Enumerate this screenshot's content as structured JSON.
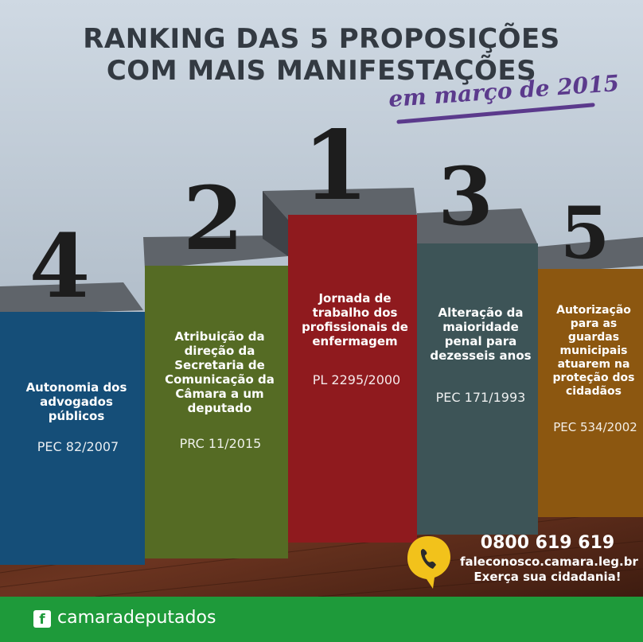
{
  "header": {
    "title_line1": "RANKING DAS 5 PROPOSIÇÕES",
    "title_line2": "COM MAIS MANIFESTAÇÕES",
    "subtitle": "em março de 2015"
  },
  "ranking": [
    {
      "rank": "4",
      "description": "Autonomia dos advogados públicos",
      "code": "PEC 82/2007",
      "color": "#154e78"
    },
    {
      "rank": "2",
      "description": "Atribuição da direção da Secretaria de Comunicação da Câmara a um deputado",
      "code": "PRC 11/2015",
      "color": "#556b24"
    },
    {
      "rank": "1",
      "description": "Jornada de trabalho dos profissionais de enfermagem",
      "code": "PL 2295/2000",
      "color": "#8f1a1e"
    },
    {
      "rank": "3",
      "description": "Alteração da maioridade penal para dezesseis anos",
      "code": "PEC 171/1993",
      "color": "#3d5457"
    },
    {
      "rank": "5",
      "description": "Autorização para as guardas municipais atuarem na proteção dos cidadãos",
      "code": "PEC 534/2002",
      "color": "#8c5710"
    }
  ],
  "contact": {
    "phone": "0800 619 619",
    "site": "faleconosco.camara.leg.br",
    "slogan": "Exerça sua cidadania!",
    "icon": "phone-balloon-icon"
  },
  "footer": {
    "social_icon": "facebook-icon",
    "social_handle": "camaradeputados"
  }
}
